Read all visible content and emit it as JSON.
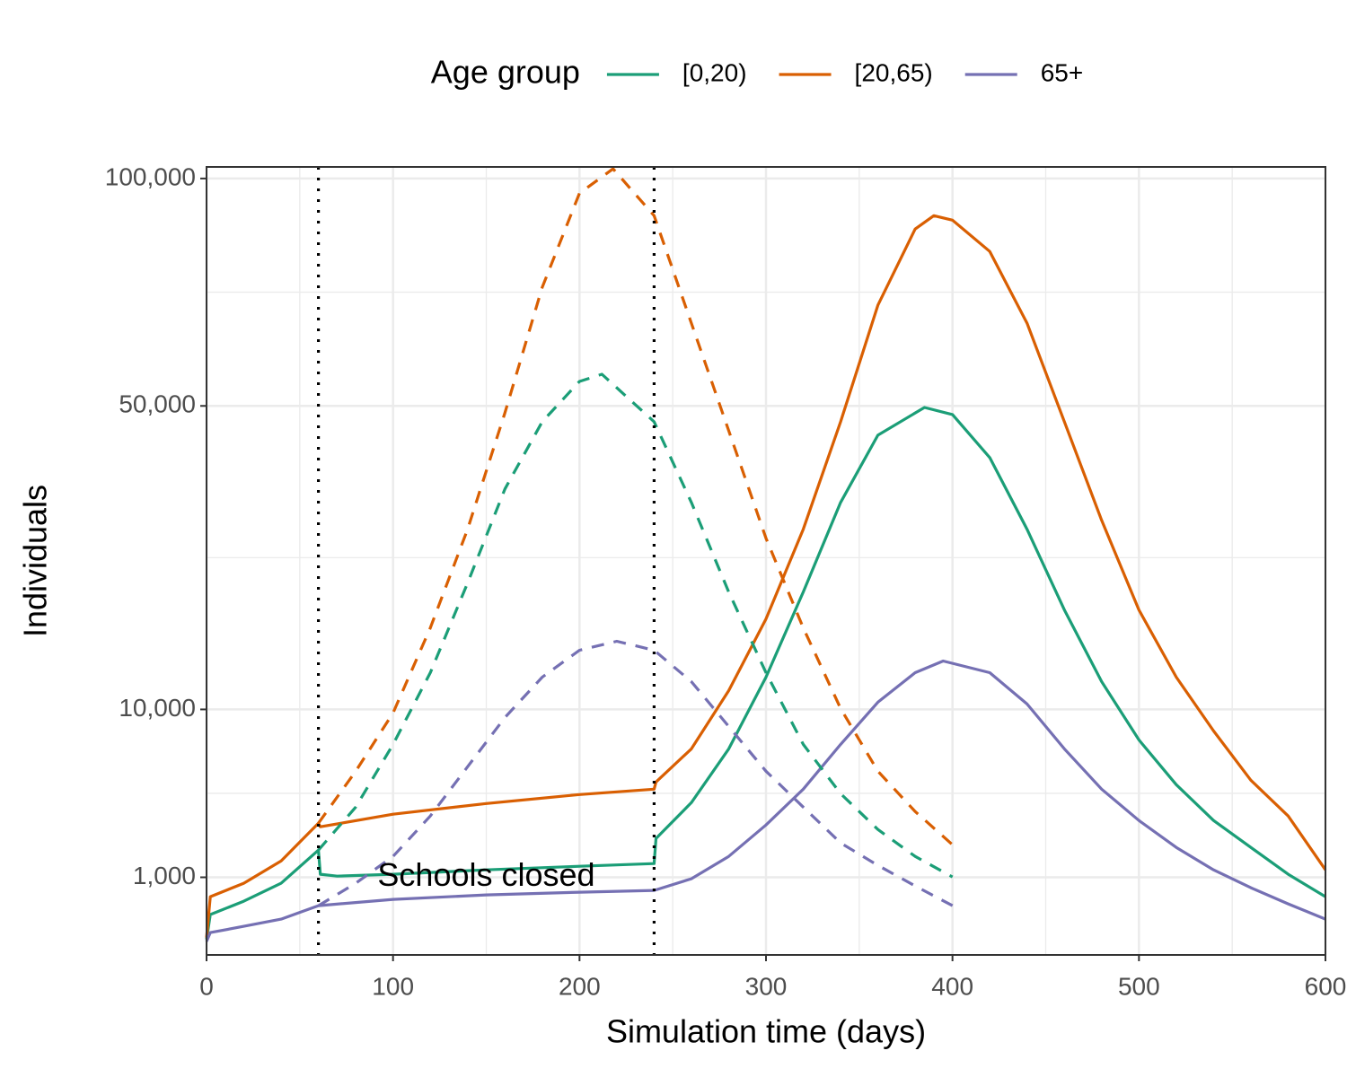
{
  "chart_data": {
    "type": "line",
    "legend_title": "Age group",
    "legend_position": "top",
    "x_label": "Simulation time (days)",
    "y_label": "Individuals",
    "xlim": [
      0,
      600
    ],
    "xticks": [
      0,
      100,
      200,
      300,
      400,
      500,
      600
    ],
    "ylim": [
      0,
      103000
    ],
    "y_scale": "sqrt",
    "yticks": [
      {
        "value": 1000,
        "label": "1,000"
      },
      {
        "value": 10000,
        "label": "10,000"
      },
      {
        "value": 50000,
        "label": "50,000"
      },
      {
        "value": 100000,
        "label": "100,000"
      }
    ],
    "grid": true,
    "vlines": [
      60,
      240
    ],
    "annotation": "Schools closed",
    "series": [
      {
        "name": "[0,20)",
        "color": "#1b9e77",
        "linestyle": "solid",
        "x": [
          0,
          2,
          20,
          40,
          60,
          61,
          70,
          100,
          150,
          200,
          240,
          241,
          260,
          280,
          300,
          320,
          340,
          360,
          385,
          400,
          420,
          440,
          460,
          480,
          500,
          520,
          540,
          560,
          580,
          600
        ],
        "values": [
          40,
          270,
          480,
          852,
          1823,
          1079,
          1031,
          1079,
          1202,
          1305,
          1386,
          2251,
          3849,
          7046,
          12800,
          21847,
          33970,
          44808,
          49725,
          48432,
          41029,
          30053,
          19743,
          12391,
          7672,
          4809,
          2997,
          1918,
          1079,
          563
        ]
      },
      {
        "name": "[20,65)",
        "color": "#d95f02",
        "linestyle": "solid",
        "x": [
          0,
          2,
          20,
          40,
          60,
          61,
          100,
          150,
          200,
          240,
          241,
          260,
          280,
          300,
          320,
          340,
          360,
          380,
          390,
          400,
          420,
          440,
          460,
          480,
          500,
          520,
          540,
          560,
          580,
          600
        ],
        "values": [
          50,
          563,
          852,
          1468,
          2878,
          2723,
          3283,
          3804,
          4268,
          4558,
          4961,
          7046,
          11592,
          18731,
          30053,
          47159,
          70012,
          87395,
          90660,
          89567,
          82080,
          66203,
          47159,
          31330,
          19743,
          12800,
          8325,
          5065,
          3200,
          1202
        ]
      },
      {
        "name": "65+",
        "color": "#7570b3",
        "linestyle": "solid",
        "x": [
          0,
          2,
          20,
          40,
          60,
          100,
          150,
          200,
          240,
          260,
          280,
          300,
          320,
          340,
          360,
          380,
          395,
          420,
          440,
          460,
          480,
          500,
          520,
          540,
          560,
          580,
          600
        ],
        "values": [
          30,
          83,
          136,
          213,
          403,
          512,
          598,
          653,
          690,
          962,
          1612,
          2800,
          4558,
          7356,
          10593,
          13217,
          14330,
          13217,
          10443,
          7046,
          4558,
          2997,
          1918,
          1202,
          749,
          433,
          213
        ]
      },
      {
        "color": "#1b9e77",
        "linestyle": "dashed",
        "x": [
          60,
          80,
          100,
          120,
          140,
          160,
          180,
          200,
          212,
          240,
          260,
          280,
          300,
          320,
          340,
          360,
          380,
          400
        ],
        "values": [
          1823,
          3626,
          7356,
          13217,
          22940,
          36018,
          47159,
          54558,
          55931,
          47159,
          33970,
          21847,
          13217,
          7356,
          4316,
          2611,
          1612,
          1008
        ]
      },
      {
        "color": "#d95f02",
        "linestyle": "dashed",
        "x": [
          60,
          80,
          100,
          120,
          140,
          160,
          180,
          200,
          218,
          240,
          260,
          280,
          300,
          320,
          340,
          360,
          380,
          400
        ],
        "values": [
          2878,
          5598,
          9710,
          17746,
          30053,
          48754,
          73929,
          96236,
          102500,
          90660,
          66203,
          45590,
          28800,
          17746,
          10073,
          5598,
          3410,
          2015
        ]
      },
      {
        "color": "#7570b3",
        "linestyle": "dashed",
        "x": [
          60,
          80,
          100,
          120,
          140,
          160,
          180,
          200,
          220,
          240,
          260,
          280,
          300,
          320,
          340,
          360,
          380,
          400
        ],
        "values": [
          403,
          852,
          1612,
          3200,
          5874,
          9354,
          12800,
          15398,
          16317,
          15398,
          12391,
          8661,
          5598,
          3626,
          2081,
          1332,
          790,
          403
        ]
      }
    ]
  }
}
